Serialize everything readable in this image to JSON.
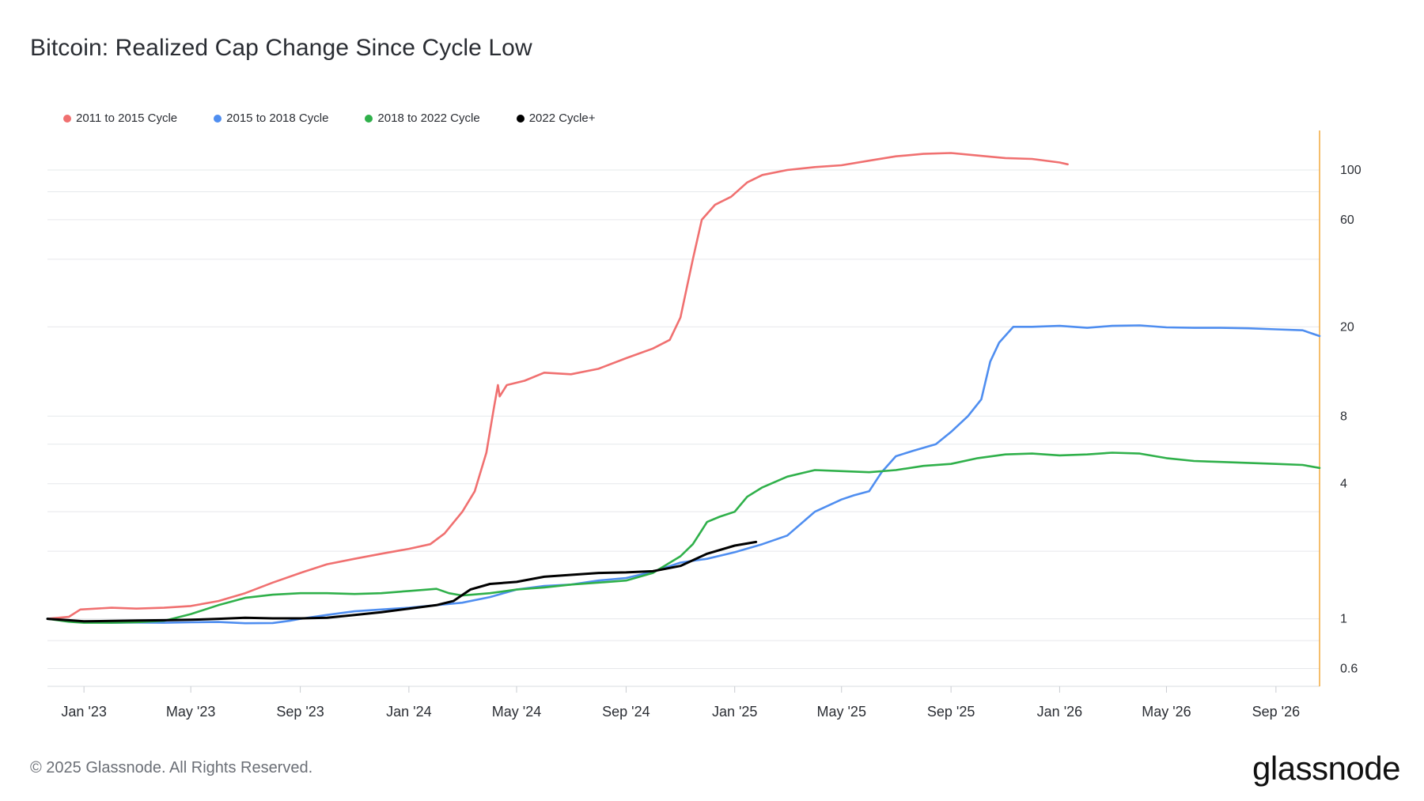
{
  "page": {
    "title": "Bitcoin: Realized Cap Change Since Cycle Low",
    "copyright": "© 2025 Glassnode. All Rights Reserved.",
    "brand": "glassnode"
  },
  "colors": {
    "cycle_2011": "#f07070",
    "cycle_2015": "#4f8ef0",
    "cycle_2018": "#2fb04a",
    "cycle_2022": "#000000",
    "axis_line": "#f2a93b",
    "grid": "#e6e8eb"
  },
  "chart_data": {
    "type": "line",
    "title": "Bitcoin: Realized Cap Change Since Cycle Low",
    "xlabel": "",
    "ylabel": "",
    "y_scale": "log",
    "ylim": [
      0.5,
      150
    ],
    "y_ticks": [
      0.6,
      1,
      4,
      8,
      20,
      60,
      100
    ],
    "y_tick_labels": [
      "0.6",
      "1",
      "4",
      "8",
      "20",
      "60",
      "100"
    ],
    "x_range": [
      "2022-11-21",
      "2026-10-20"
    ],
    "x_ticks": [
      "2023-01-01",
      "2023-05-01",
      "2023-09-01",
      "2024-01-01",
      "2024-05-01",
      "2024-09-01",
      "2025-01-01",
      "2025-05-01",
      "2025-09-01",
      "2026-01-01",
      "2026-05-01",
      "2026-09-01"
    ],
    "x_tick_labels": [
      "Jan '23",
      "May '23",
      "Sep '23",
      "Jan '24",
      "May '24",
      "Sep '24",
      "Jan '25",
      "May '25",
      "Sep '25",
      "Jan '26",
      "May '26",
      "Sep '26"
    ],
    "grid": true,
    "legend_position": "top-left",
    "series": [
      {
        "name": "2011 to 2015 Cycle",
        "color_key": "cycle_2011",
        "points": [
          [
            "2022-11-21",
            1.0
          ],
          [
            "2022-12-15",
            1.02
          ],
          [
            "2022-12-28",
            1.1
          ],
          [
            "2023-02-01",
            1.12
          ],
          [
            "2023-03-01",
            1.11
          ],
          [
            "2023-04-01",
            1.12
          ],
          [
            "2023-05-01",
            1.14
          ],
          [
            "2023-06-01",
            1.2
          ],
          [
            "2023-07-01",
            1.3
          ],
          [
            "2023-08-01",
            1.45
          ],
          [
            "2023-09-01",
            1.6
          ],
          [
            "2023-10-01",
            1.75
          ],
          [
            "2023-11-01",
            1.85
          ],
          [
            "2023-12-01",
            1.95
          ],
          [
            "2024-01-01",
            2.05
          ],
          [
            "2024-01-25",
            2.15
          ],
          [
            "2024-02-10",
            2.4
          ],
          [
            "2024-03-01",
            3.0
          ],
          [
            "2024-03-15",
            3.7
          ],
          [
            "2024-03-28",
            5.5
          ],
          [
            "2024-04-05",
            8.5
          ],
          [
            "2024-04-10",
            11.0
          ],
          [
            "2024-04-12",
            9.8
          ],
          [
            "2024-04-20",
            11.0
          ],
          [
            "2024-05-10",
            11.5
          ],
          [
            "2024-06-01",
            12.5
          ],
          [
            "2024-07-01",
            12.3
          ],
          [
            "2024-08-01",
            13.0
          ],
          [
            "2024-09-01",
            14.5
          ],
          [
            "2024-10-01",
            16.0
          ],
          [
            "2024-10-20",
            17.5
          ],
          [
            "2024-11-01",
            22.0
          ],
          [
            "2024-11-15",
            40.0
          ],
          [
            "2024-11-25",
            60.0
          ],
          [
            "2024-12-10",
            70.0
          ],
          [
            "2024-12-28",
            76.0
          ],
          [
            "2025-01-15",
            88.0
          ],
          [
            "2025-02-01",
            95.0
          ],
          [
            "2025-03-01",
            100.0
          ],
          [
            "2025-04-01",
            103.0
          ],
          [
            "2025-05-01",
            105.0
          ],
          [
            "2025-06-01",
            110.0
          ],
          [
            "2025-07-01",
            115.0
          ],
          [
            "2025-08-01",
            118.0
          ],
          [
            "2025-09-01",
            119.0
          ],
          [
            "2025-10-01",
            116.0
          ],
          [
            "2025-11-01",
            113.0
          ],
          [
            "2025-12-01",
            112.0
          ],
          [
            "2026-01-01",
            108.0
          ],
          [
            "2026-01-10",
            106.0
          ]
        ]
      },
      {
        "name": "2015 to 2018 Cycle",
        "color_key": "cycle_2015",
        "points": [
          [
            "2022-11-21",
            1.0
          ],
          [
            "2022-12-15",
            0.98
          ],
          [
            "2023-01-01",
            0.965
          ],
          [
            "2023-02-01",
            0.96
          ],
          [
            "2023-03-01",
            0.962
          ],
          [
            "2023-04-01",
            0.96
          ],
          [
            "2023-05-01",
            0.965
          ],
          [
            "2023-06-01",
            0.968
          ],
          [
            "2023-07-01",
            0.955
          ],
          [
            "2023-08-01",
            0.958
          ],
          [
            "2023-08-20",
            0.98
          ],
          [
            "2023-09-01",
            1.0
          ],
          [
            "2023-10-01",
            1.04
          ],
          [
            "2023-11-01",
            1.08
          ],
          [
            "2023-12-01",
            1.1
          ],
          [
            "2024-01-01",
            1.12
          ],
          [
            "2024-02-01",
            1.15
          ],
          [
            "2024-03-01",
            1.18
          ],
          [
            "2024-04-01",
            1.25
          ],
          [
            "2024-05-01",
            1.35
          ],
          [
            "2024-06-01",
            1.4
          ],
          [
            "2024-07-01",
            1.42
          ],
          [
            "2024-08-01",
            1.48
          ],
          [
            "2024-09-01",
            1.52
          ],
          [
            "2024-10-01",
            1.62
          ],
          [
            "2024-11-01",
            1.78
          ],
          [
            "2024-12-01",
            1.85
          ],
          [
            "2025-01-01",
            1.98
          ],
          [
            "2025-02-01",
            2.15
          ],
          [
            "2025-03-01",
            2.35
          ],
          [
            "2025-04-01",
            3.0
          ],
          [
            "2025-05-01",
            3.4
          ],
          [
            "2025-05-15",
            3.55
          ],
          [
            "2025-06-01",
            3.7
          ],
          [
            "2025-06-15",
            4.5
          ],
          [
            "2025-07-01",
            5.3
          ],
          [
            "2025-07-20",
            5.6
          ],
          [
            "2025-08-15",
            6.0
          ],
          [
            "2025-09-01",
            6.8
          ],
          [
            "2025-09-20",
            8.0
          ],
          [
            "2025-10-05",
            9.5
          ],
          [
            "2025-10-15",
            14.0
          ],
          [
            "2025-10-25",
            17.0
          ],
          [
            "2025-11-10",
            20.0
          ],
          [
            "2025-12-01",
            20.0
          ],
          [
            "2026-01-01",
            20.2
          ],
          [
            "2026-02-01",
            19.8
          ],
          [
            "2026-03-01",
            20.2
          ],
          [
            "2026-04-01",
            20.3
          ],
          [
            "2026-05-01",
            19.9
          ],
          [
            "2026-06-01",
            19.8
          ],
          [
            "2026-07-01",
            19.8
          ],
          [
            "2026-08-01",
            19.7
          ],
          [
            "2026-09-01",
            19.5
          ],
          [
            "2026-10-01",
            19.3
          ],
          [
            "2026-10-20",
            18.2
          ]
        ]
      },
      {
        "name": "2018 to 2022 Cycle",
        "color_key": "cycle_2018",
        "points": [
          [
            "2022-11-21",
            1.0
          ],
          [
            "2022-12-15",
            0.97
          ],
          [
            "2023-01-01",
            0.96
          ],
          [
            "2023-02-01",
            0.96
          ],
          [
            "2023-03-01",
            0.965
          ],
          [
            "2023-04-01",
            0.98
          ],
          [
            "2023-05-01",
            1.05
          ],
          [
            "2023-06-01",
            1.15
          ],
          [
            "2023-07-01",
            1.24
          ],
          [
            "2023-08-01",
            1.28
          ],
          [
            "2023-09-01",
            1.3
          ],
          [
            "2023-10-01",
            1.3
          ],
          [
            "2023-11-01",
            1.29
          ],
          [
            "2023-12-01",
            1.3
          ],
          [
            "2024-01-01",
            1.33
          ],
          [
            "2024-02-01",
            1.36
          ],
          [
            "2024-02-15",
            1.3
          ],
          [
            "2024-03-01",
            1.27
          ],
          [
            "2024-04-01",
            1.3
          ],
          [
            "2024-05-01",
            1.35
          ],
          [
            "2024-06-01",
            1.38
          ],
          [
            "2024-07-01",
            1.42
          ],
          [
            "2024-08-01",
            1.45
          ],
          [
            "2024-09-01",
            1.48
          ],
          [
            "2024-10-01",
            1.6
          ],
          [
            "2024-11-01",
            1.9
          ],
          [
            "2024-11-15",
            2.15
          ],
          [
            "2024-12-01",
            2.7
          ],
          [
            "2024-12-15",
            2.85
          ],
          [
            "2025-01-01",
            3.0
          ],
          [
            "2025-01-15",
            3.5
          ],
          [
            "2025-02-01",
            3.85
          ],
          [
            "2025-03-01",
            4.3
          ],
          [
            "2025-04-01",
            4.6
          ],
          [
            "2025-05-01",
            4.55
          ],
          [
            "2025-06-01",
            4.5
          ],
          [
            "2025-07-01",
            4.6
          ],
          [
            "2025-08-01",
            4.8
          ],
          [
            "2025-09-01",
            4.9
          ],
          [
            "2025-10-01",
            5.2
          ],
          [
            "2025-11-01",
            5.4
          ],
          [
            "2025-12-01",
            5.45
          ],
          [
            "2026-01-01",
            5.35
          ],
          [
            "2026-02-01",
            5.4
          ],
          [
            "2026-03-01",
            5.5
          ],
          [
            "2026-04-01",
            5.45
          ],
          [
            "2026-05-01",
            5.2
          ],
          [
            "2026-06-01",
            5.05
          ],
          [
            "2026-07-01",
            5.0
          ],
          [
            "2026-08-01",
            4.95
          ],
          [
            "2026-09-01",
            4.9
          ],
          [
            "2026-10-01",
            4.85
          ],
          [
            "2026-10-20",
            4.7
          ]
        ]
      },
      {
        "name": "2022 Cycle+",
        "color_key": "cycle_2022",
        "points": [
          [
            "2022-11-21",
            1.0
          ],
          [
            "2022-12-15",
            0.985
          ],
          [
            "2023-01-01",
            0.975
          ],
          [
            "2023-02-01",
            0.978
          ],
          [
            "2023-03-01",
            0.982
          ],
          [
            "2023-04-01",
            0.985
          ],
          [
            "2023-05-01",
            0.99
          ],
          [
            "2023-06-01",
            1.0
          ],
          [
            "2023-07-01",
            1.01
          ],
          [
            "2023-08-01",
            1.005
          ],
          [
            "2023-09-01",
            1.005
          ],
          [
            "2023-10-01",
            1.01
          ],
          [
            "2023-11-01",
            1.04
          ],
          [
            "2023-12-01",
            1.07
          ],
          [
            "2024-01-01",
            1.11
          ],
          [
            "2024-02-01",
            1.15
          ],
          [
            "2024-02-20",
            1.2
          ],
          [
            "2024-03-10",
            1.35
          ],
          [
            "2024-04-01",
            1.43
          ],
          [
            "2024-05-01",
            1.46
          ],
          [
            "2024-06-01",
            1.54
          ],
          [
            "2024-07-01",
            1.57
          ],
          [
            "2024-08-01",
            1.6
          ],
          [
            "2024-09-01",
            1.61
          ],
          [
            "2024-10-01",
            1.63
          ],
          [
            "2024-11-01",
            1.72
          ],
          [
            "2024-12-01",
            1.95
          ],
          [
            "2025-01-01",
            2.12
          ],
          [
            "2025-01-25",
            2.2
          ]
        ]
      }
    ]
  }
}
